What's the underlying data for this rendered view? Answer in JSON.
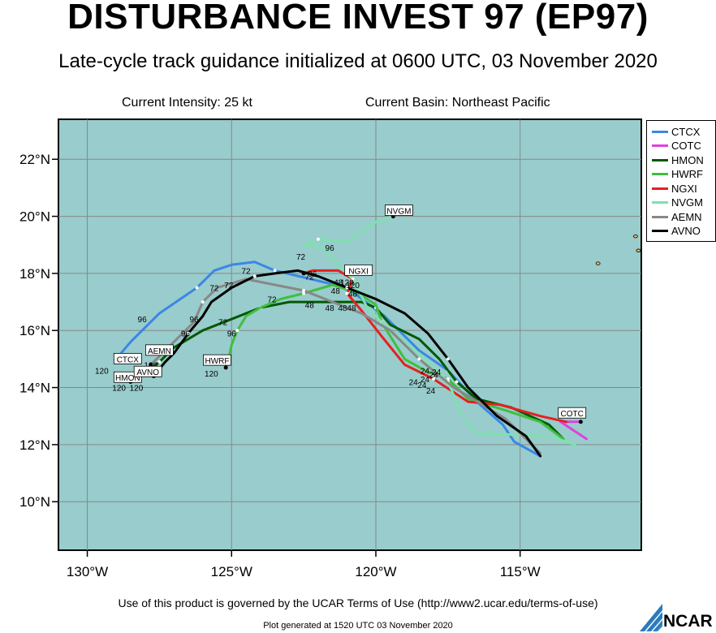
{
  "header": {
    "title": "DISTURBANCE INVEST 97 (EP97)",
    "subtitle": "Late-cycle track guidance initialized at 0600 UTC, 03 November 2020",
    "intensity": "Current Intensity: 25 kt",
    "basin": "Current Basin: Northeast Pacific"
  },
  "footer": {
    "terms": "Use of this product is governed by the UCAR Terms of Use (http://www2.ucar.edu/terms-of-use)",
    "generated": "Plot generated at 1520 UTC   03 November 2020",
    "logo_text": "NCAR"
  },
  "map": {
    "lon_range": [
      -131,
      -110.8
    ],
    "lat_range": [
      8.3,
      23.4
    ],
    "lon_ticks": [
      -130,
      -125,
      -120,
      -115
    ],
    "lon_tick_labels": [
      "130°W",
      "125°W",
      "120°W",
      "115°W"
    ],
    "lat_ticks": [
      10,
      12,
      14,
      16,
      18,
      20,
      22
    ],
    "lat_tick_labels": [
      "10°N",
      "12°N",
      "14°N",
      "16°N",
      "18°N",
      "20°N",
      "22°N"
    ],
    "ocean_color": "#99cccc",
    "grid": true
  },
  "legend": [
    {
      "name": "CTCX",
      "color": "#3a87e6"
    },
    {
      "name": "COTC",
      "color": "#e040e0"
    },
    {
      "name": "HMON",
      "color": "#005a00"
    },
    {
      "name": "HWRF",
      "color": "#3fbf3f"
    },
    {
      "name": "NGXI",
      "color": "#e62020"
    },
    {
      "name": "NVGM",
      "color": "#7fe0b0"
    },
    {
      "name": "AEMN",
      "color": "#888888"
    },
    {
      "name": "AVNO",
      "color": "#000000"
    }
  ],
  "chart_data": {
    "type": "map",
    "series": [
      {
        "name": "CTCX",
        "color": "#3a87e6",
        "points": [
          [
            -114.3,
            11.6
          ],
          [
            -115.2,
            12.1
          ],
          [
            -115.6,
            12.7
          ],
          [
            -116.5,
            13.5
          ],
          [
            -117.5,
            14.6
          ],
          [
            -118.5,
            15.3
          ],
          [
            -119.7,
            16.5
          ],
          [
            -121.0,
            17.5
          ],
          [
            -123.5,
            18.1
          ],
          [
            -124.2,
            18.4
          ],
          [
            -125.0,
            18.3
          ],
          [
            -125.6,
            18.1
          ],
          [
            -126.2,
            17.5
          ],
          [
            -127.5,
            16.6
          ],
          [
            -128.5,
            15.6
          ],
          [
            -129.0,
            15.0
          ]
        ],
        "label": "CTCX",
        "label_pos": [
          -128.6,
          15.0
        ],
        "end_hour": "120",
        "end_pos": [
          -129.5,
          14.6
        ]
      },
      {
        "name": "COTC",
        "color": "#e040e0",
        "points": [
          [
            -112.7,
            12.2
          ],
          [
            -113.3,
            12.6
          ],
          [
            -113.6,
            12.8
          ],
          [
            -113.3,
            12.8
          ],
          [
            -112.9,
            12.8
          ]
        ],
        "label": "COTC",
        "label_pos": [
          -113.2,
          13.1
        ]
      },
      {
        "name": "HMON",
        "color": "#005a00",
        "points": [
          [
            -113.5,
            12.2
          ],
          [
            -114.0,
            12.7
          ],
          [
            -115.3,
            13.3
          ],
          [
            -116.5,
            13.6
          ],
          [
            -117.2,
            14.2
          ],
          [
            -117.8,
            15.0
          ],
          [
            -118.5,
            15.7
          ],
          [
            -119.5,
            16.2
          ],
          [
            -120.0,
            16.8
          ],
          [
            -120.5,
            17.0
          ],
          [
            -121.5,
            17.0
          ],
          [
            -123.0,
            17.0
          ],
          [
            -124.0,
            16.8
          ],
          [
            -125.0,
            16.4
          ],
          [
            -126.0,
            16.0
          ],
          [
            -127.0,
            15.4
          ],
          [
            -127.5,
            14.9
          ],
          [
            -128.0,
            14.5
          ],
          [
            -128.5,
            14.2
          ]
        ],
        "label": "HMON",
        "label_pos": [
          -128.6,
          14.35
        ],
        "end_hour": "120",
        "end_pos": [
          -128.9,
          14.0
        ]
      },
      {
        "name": "HWRF",
        "color": "#3fbf3f",
        "points": [
          [
            -113.5,
            12.2
          ],
          [
            -114.3,
            12.8
          ],
          [
            -115.5,
            13.2
          ],
          [
            -116.8,
            13.6
          ],
          [
            -117.5,
            14.3
          ],
          [
            -118.3,
            14.6
          ],
          [
            -119.0,
            15.0
          ],
          [
            -119.5,
            15.8
          ],
          [
            -119.8,
            16.3
          ],
          [
            -120.0,
            16.9
          ],
          [
            -120.6,
            17.3
          ],
          [
            -121.5,
            17.6
          ],
          [
            -122.5,
            17.3
          ],
          [
            -123.3,
            17.1
          ],
          [
            -124.0,
            16.8
          ],
          [
            -124.5,
            16.5
          ],
          [
            -124.8,
            16.0
          ],
          [
            -125.0,
            15.5
          ],
          [
            -125.1,
            15.0
          ],
          [
            -125.2,
            14.7
          ]
        ],
        "label": "HWRF",
        "label_pos": [
          -125.5,
          14.95
        ],
        "end_hour": "120",
        "end_pos": [
          -125.7,
          14.5
        ]
      },
      {
        "name": "NGXI",
        "color": "#e62020",
        "points": [
          [
            -113.4,
            12.8
          ],
          [
            -114.3,
            13.0
          ],
          [
            -115.7,
            13.4
          ],
          [
            -116.8,
            13.5
          ],
          [
            -118.0,
            14.3
          ],
          [
            -119.0,
            14.8
          ],
          [
            -119.8,
            15.8
          ],
          [
            -120.5,
            16.7
          ],
          [
            -121.0,
            17.3
          ],
          [
            -120.8,
            17.8
          ],
          [
            -121.3,
            18.1
          ],
          [
            -122.2,
            18.1
          ],
          [
            -122.5,
            18.0
          ]
        ],
        "label": "NGXI",
        "label_pos": [
          -120.6,
          18.1
        ],
        "end_hour": "120",
        "end_pos": [
          -120.8,
          17.6
        ]
      },
      {
        "name": "NVGM",
        "color": "#7fe0b0",
        "points": [
          [
            -113.1,
            12.0
          ],
          [
            -114.0,
            12.3
          ],
          [
            -116.5,
            12.4
          ],
          [
            -117.0,
            13.0
          ],
          [
            -117.5,
            14.2
          ],
          [
            -118.5,
            15.2
          ],
          [
            -119.5,
            16.0
          ],
          [
            -120.3,
            16.8
          ],
          [
            -120.8,
            17.8
          ],
          [
            -121.5,
            18.5
          ],
          [
            -121.8,
            18.9
          ],
          [
            -122.5,
            19.0
          ],
          [
            -122.0,
            19.2
          ],
          [
            -121.0,
            19.1
          ],
          [
            -120.0,
            19.8
          ],
          [
            -119.4,
            20.0
          ]
        ],
        "label": "NVGM",
        "label_pos": [
          -119.2,
          20.2
        ]
      },
      {
        "name": "AEMN",
        "color": "#888888",
        "points": [
          [
            -114.3,
            11.7
          ],
          [
            -115.5,
            12.9
          ],
          [
            -116.3,
            13.4
          ],
          [
            -117.3,
            14.0
          ],
          [
            -118.5,
            15.0
          ],
          [
            -119.5,
            16.0
          ],
          [
            -120.5,
            16.6
          ],
          [
            -121.5,
            17.0
          ],
          [
            -122.5,
            17.4
          ],
          [
            -123.5,
            17.6
          ],
          [
            -124.5,
            17.8
          ],
          [
            -125.5,
            17.5
          ],
          [
            -126.0,
            17.0
          ],
          [
            -126.3,
            16.3
          ],
          [
            -126.8,
            15.8
          ],
          [
            -127.3,
            15.3
          ],
          [
            -127.8,
            14.8
          ]
        ],
        "label": "AEMN",
        "label_pos": [
          -127.5,
          15.3
        ],
        "end_hour": "120",
        "end_pos": [
          -127.8,
          14.8
        ]
      },
      {
        "name": "AVNO",
        "color": "#000000",
        "points": [
          [
            -114.3,
            11.6
          ],
          [
            -114.8,
            12.3
          ],
          [
            -115.8,
            13.0
          ],
          [
            -116.8,
            14.0
          ],
          [
            -117.5,
            15.0
          ],
          [
            -118.2,
            15.9
          ],
          [
            -119.0,
            16.6
          ],
          [
            -120.0,
            17.1
          ],
          [
            -121.0,
            17.5
          ],
          [
            -122.0,
            17.9
          ],
          [
            -122.7,
            18.1
          ],
          [
            -123.5,
            18.0
          ],
          [
            -124.2,
            17.9
          ],
          [
            -125.0,
            17.5
          ],
          [
            -125.7,
            17.0
          ],
          [
            -126.0,
            16.5
          ],
          [
            -126.5,
            15.9
          ],
          [
            -127.0,
            15.2
          ],
          [
            -127.3,
            14.9
          ],
          [
            -127.7,
            14.4
          ]
        ],
        "label": "AVNO",
        "label_pos": [
          -127.9,
          14.55
        ],
        "end_hour": "120",
        "end_pos": [
          -128.3,
          14.0
        ]
      }
    ],
    "hour_labels": [
      {
        "text": "96",
        "pos": [
          -121.6,
          18.9
        ]
      },
      {
        "text": "72",
        "pos": [
          -122.6,
          18.6
        ]
      },
      {
        "text": "72",
        "pos": [
          -124.5,
          18.1
        ]
      },
      {
        "text": "72",
        "pos": [
          -122.3,
          17.9
        ]
      },
      {
        "text": "96",
        "pos": [
          -122.2,
          18.0
        ]
      },
      {
        "text": "120",
        "pos": [
          -121.0,
          17.7
        ]
      },
      {
        "text": "48",
        "pos": [
          -121.3,
          17.7
        ]
      },
      {
        "text": "48",
        "pos": [
          -121.4,
          17.4
        ]
      },
      {
        "text": "48",
        "pos": [
          -120.8,
          17.3
        ]
      },
      {
        "text": "48",
        "pos": [
          -122.3,
          16.9
        ]
      },
      {
        "text": "48",
        "pos": [
          -121.6,
          16.8
        ]
      },
      {
        "text": "4848",
        "pos": [
          -121.0,
          16.8
        ]
      },
      {
        "text": "72",
        "pos": [
          -123.6,
          17.1
        ]
      },
      {
        "text": "72",
        "pos": [
          -125.6,
          17.5
        ]
      },
      {
        "text": "72",
        "pos": [
          -125.1,
          17.6
        ]
      },
      {
        "text": "96",
        "pos": [
          -126.3,
          16.4
        ]
      },
      {
        "text": "96",
        "pos": [
          -126.6,
          15.9
        ]
      },
      {
        "text": "72",
        "pos": [
          -125.3,
          16.3
        ]
      },
      {
        "text": "96",
        "pos": [
          -125.0,
          15.9
        ]
      },
      {
        "text": "96",
        "pos": [
          -128.1,
          16.4
        ]
      },
      {
        "text": "24",
        "pos": [
          -118.3,
          14.6
        ]
      },
      {
        "text": "24",
        "pos": [
          -118.3,
          14.3
        ]
      },
      {
        "text": "24",
        "pos": [
          -118.7,
          14.2
        ]
      },
      {
        "text": "24",
        "pos": [
          -118.0,
          14.45
        ]
      },
      {
        "text": "24",
        "pos": [
          -117.9,
          14.55
        ]
      },
      {
        "text": "24",
        "pos": [
          -118.1,
          13.9
        ]
      },
      {
        "text": "24",
        "pos": [
          -118.4,
          14.1
        ]
      }
    ],
    "islands": [
      [
        -110.9,
        18.8
      ],
      [
        -111.0,
        19.3
      ],
      [
        -112.3,
        18.35
      ]
    ]
  }
}
